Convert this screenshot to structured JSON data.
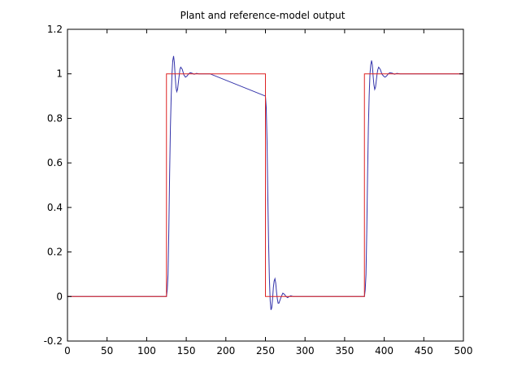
{
  "chart_data": {
    "type": "line",
    "title": "Plant and reference-model output",
    "xlabel": "",
    "ylabel": "",
    "xlim": [
      0,
      500
    ],
    "ylim": [
      -0.2,
      1.2
    ],
    "grid": false,
    "xticks": [
      0,
      50,
      100,
      150,
      200,
      250,
      300,
      350,
      400,
      450,
      500
    ],
    "yticks": [
      -0.2,
      0,
      0.2,
      0.4,
      0.6,
      0.8,
      1,
      1.2
    ],
    "xtick_labels": [
      "0",
      "50",
      "100",
      "150",
      "200",
      "250",
      "300",
      "350",
      "400",
      "450",
      "500"
    ],
    "ytick_labels": [
      "-0.2",
      "0",
      "0.2",
      "0.4",
      "0.6",
      "0.8",
      "1",
      "1.2"
    ],
    "series": [
      {
        "color": "#3333aa",
        "x": [
          0,
          124,
          125,
          126,
          127,
          128,
          129,
          130,
          131,
          132,
          133,
          134,
          135,
          136,
          137,
          138,
          139,
          140,
          141,
          142,
          143,
          145,
          147,
          149,
          151,
          153,
          155,
          157,
          160,
          163,
          166,
          170,
          175,
          180,
          250,
          251,
          252,
          253,
          254,
          255,
          256,
          257,
          258,
          259,
          260,
          261,
          262,
          263,
          264,
          265,
          266,
          267,
          268,
          270,
          272,
          274,
          276,
          278,
          280,
          282,
          285,
          288,
          291,
          295,
          300,
          305,
          375,
          376,
          377,
          378,
          379,
          380,
          381,
          382,
          383,
          384,
          385,
          386,
          387,
          388,
          389,
          390,
          391,
          392,
          393,
          395,
          397,
          399,
          401,
          403,
          405,
          407,
          410,
          413,
          416,
          420,
          425,
          430,
          500
        ],
        "y": [
          0,
          0,
          0,
          0.03,
          0.1,
          0.3,
          0.55,
          0.76,
          0.9,
          1.0,
          1.06,
          1.08,
          1.05,
          0.99,
          0.94,
          0.92,
          0.93,
          0.96,
          0.99,
          1.02,
          1.03,
          1.02,
          0.995,
          0.985,
          0.99,
          1.0,
          1.005,
          1.003,
          0.998,
          1.002,
          1.0,
          1.0,
          1.0,
          1.0,
          0.9,
          0.85,
          0.7,
          0.45,
          0.24,
          0.08,
          -0.02,
          -0.06,
          -0.05,
          -0.01,
          0.04,
          0.07,
          0.08,
          0.06,
          0.02,
          -0.01,
          -0.03,
          -0.03,
          -0.02,
          0.0,
          0.015,
          0.01,
          0.0,
          -0.005,
          0.0,
          0.003,
          0.0,
          0.0,
          0.0,
          0.0,
          0.0,
          0.0,
          0.0,
          0.03,
          0.1,
          0.3,
          0.55,
          0.76,
          0.9,
          1.0,
          1.04,
          1.06,
          1.04,
          0.99,
          0.95,
          0.93,
          0.94,
          0.97,
          1.0,
          1.02,
          1.03,
          1.02,
          1.0,
          0.99,
          0.985,
          0.99,
          1.0,
          1.005,
          1.003,
          0.998,
          1.002,
          1.0,
          1.0,
          1.0,
          1.0
        ]
      },
      {
        "color": "#dd2222",
        "x": [
          0,
          125,
          125,
          250,
          250,
          375,
          375,
          500
        ],
        "y": [
          0,
          0,
          1,
          1,
          0,
          0,
          1,
          1
        ]
      }
    ]
  }
}
